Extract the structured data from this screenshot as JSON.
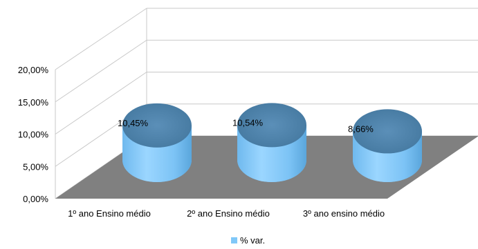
{
  "chart_data": {
    "type": "bar",
    "style": "3d-cylinder",
    "categories": [
      "1º ano Ensino médio",
      "2º ano Ensino médio",
      "3º ano ensino médio"
    ],
    "series": [
      {
        "name": "% var.",
        "values": [
          10.45,
          10.54,
          8.66
        ],
        "labels": [
          "10,45%",
          "10,54%",
          "8,66%"
        ]
      }
    ],
    "y_ticks": [
      "0,00%",
      "5,00%",
      "10,00%",
      "15,00%",
      "20,00%"
    ],
    "ylim": [
      0,
      20
    ],
    "grid": true,
    "legend": "bottom",
    "colors": {
      "bar_body": "#80c8f8",
      "bar_top": "#4a7fa8",
      "floor": "#808080",
      "gridline": "#c8c8c8"
    }
  }
}
